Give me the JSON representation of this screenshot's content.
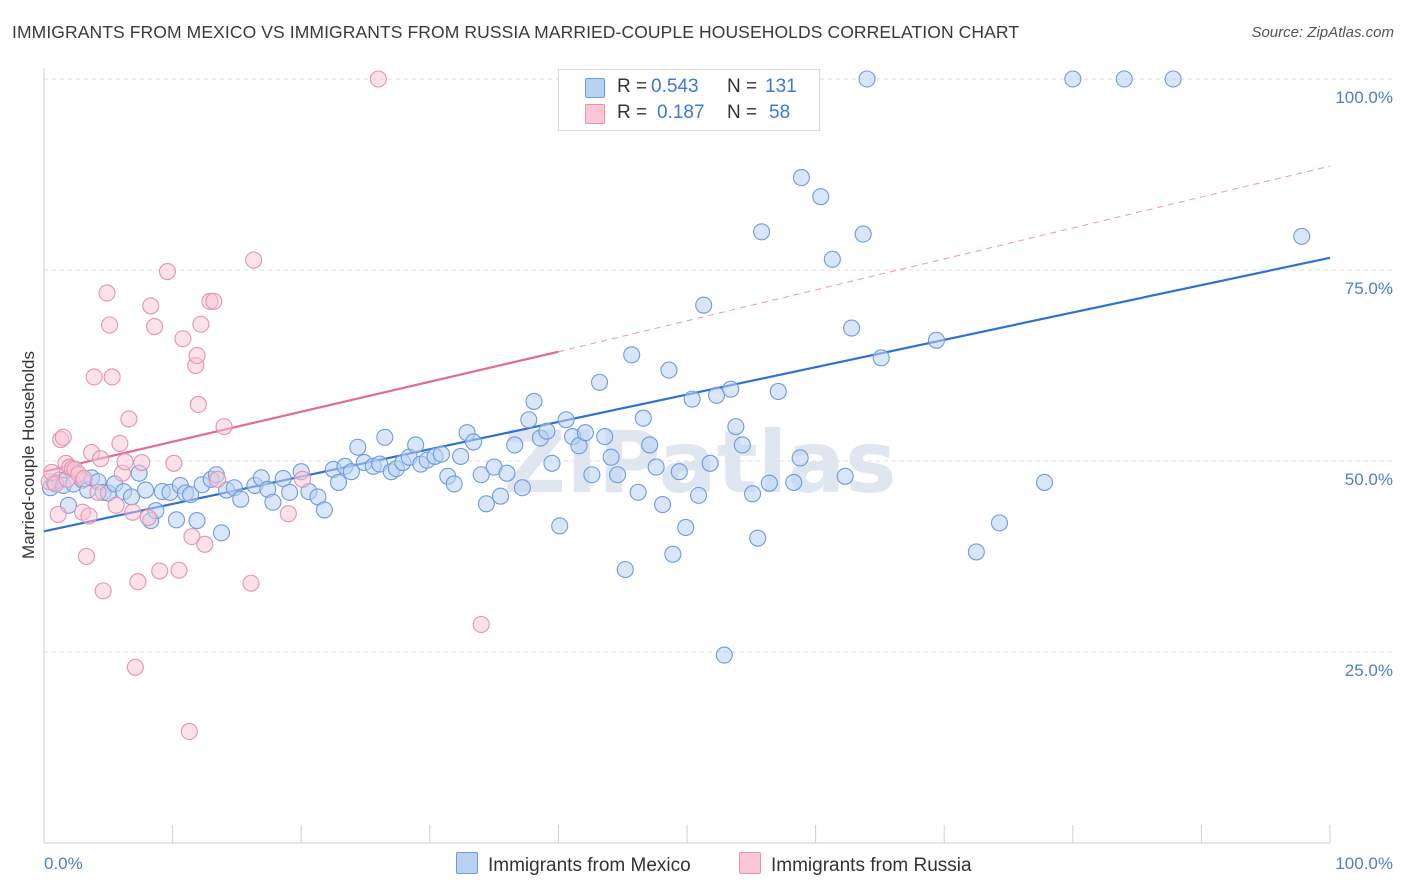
{
  "title": "IMMIGRANTS FROM MEXICO VS IMMIGRANTS FROM RUSSIA MARRIED-COUPLE HOUSEHOLDS CORRELATION CHART",
  "source": "Source: ZipAtlas.com",
  "watermark": "ZIPatlas",
  "legend": {
    "mexico": {
      "r_label": "R =",
      "r_value": "0.543",
      "n_label": "N =",
      "n_value": "131"
    },
    "russia": {
      "r_label": "R =",
      "r_value": "0.187",
      "n_label": "N =",
      "n_value": "58"
    }
  },
  "colors": {
    "mexico_fill": "#b9d1f3",
    "mexico_stroke": "#6c9be0",
    "mexico_line": "#2f72d0",
    "russia_fill": "#f8c6d5",
    "russia_stroke": "#e792ae",
    "russia_line": "#e26b92",
    "grid": "#dcdcdc",
    "axis_text": "#4a7fd0"
  },
  "chart_data": {
    "type": "scatter",
    "title": "IMMIGRANTS FROM MEXICO VS IMMIGRANTS FROM RUSSIA MARRIED-COUPLE HOUSEHOLDS CORRELATION CHART",
    "xlabel": "",
    "ylabel": "Married-couple Households",
    "xlim": [
      0,
      100
    ],
    "ylim": [
      0,
      100
    ],
    "x_tick_labels": [
      "0.0%",
      "100.0%"
    ],
    "y_ticks": [
      25,
      50,
      75,
      100
    ],
    "y_tick_labels": [
      "25.0%",
      "50.0%",
      "75.0%",
      "100.0%"
    ],
    "series": [
      {
        "name": "Immigrants from Mexico",
        "trend": {
          "x0": 0,
          "y0": 40.8,
          "x1": 100,
          "y1": 76.6
        },
        "points": [
          [
            0.5,
            46.5
          ],
          [
            0.8,
            47.2
          ],
          [
            1.2,
            47.5
          ],
          [
            1.5,
            46.8
          ],
          [
            1.9,
            44.2
          ],
          [
            2.3,
            47.0
          ],
          [
            3.0,
            47.5
          ],
          [
            3.4,
            46.2
          ],
          [
            3.7,
            47.8
          ],
          [
            4.2,
            47.3
          ],
          [
            4.6,
            45.9
          ],
          [
            5.0,
            45.8
          ],
          [
            5.5,
            47.0
          ],
          [
            6.2,
            46.0
          ],
          [
            6.8,
            45.3
          ],
          [
            7.4,
            48.4
          ],
          [
            7.9,
            46.2
          ],
          [
            8.3,
            42.2
          ],
          [
            8.7,
            43.5
          ],
          [
            9.2,
            46.0
          ],
          [
            9.8,
            45.9
          ],
          [
            10.3,
            42.3
          ],
          [
            10.6,
            46.8
          ],
          [
            11.0,
            45.8
          ],
          [
            11.4,
            45.6
          ],
          [
            11.9,
            42.2
          ],
          [
            12.3,
            46.9
          ],
          [
            13.0,
            47.6
          ],
          [
            13.4,
            48.2
          ],
          [
            13.8,
            40.6
          ],
          [
            14.2,
            46.2
          ],
          [
            14.8,
            46.5
          ],
          [
            15.3,
            45.0
          ],
          [
            16.4,
            46.8
          ],
          [
            16.9,
            47.8
          ],
          [
            17.4,
            46.3
          ],
          [
            17.8,
            44.6
          ],
          [
            18.6,
            47.7
          ],
          [
            19.1,
            45.9
          ],
          [
            20.0,
            48.6
          ],
          [
            20.6,
            46.0
          ],
          [
            21.3,
            45.3
          ],
          [
            21.8,
            43.6
          ],
          [
            22.5,
            48.9
          ],
          [
            22.9,
            47.2
          ],
          [
            23.4,
            49.3
          ],
          [
            23.9,
            48.6
          ],
          [
            24.4,
            51.8
          ],
          [
            24.9,
            49.8
          ],
          [
            25.6,
            49.3
          ],
          [
            26.1,
            49.6
          ],
          [
            26.5,
            53.1
          ],
          [
            27.0,
            48.6
          ],
          [
            27.4,
            49.0
          ],
          [
            27.9,
            49.8
          ],
          [
            28.4,
            50.5
          ],
          [
            28.9,
            52.1
          ],
          [
            29.3,
            49.6
          ],
          [
            29.8,
            50.1
          ],
          [
            30.4,
            50.6
          ],
          [
            30.9,
            50.9
          ],
          [
            31.4,
            48.0
          ],
          [
            31.9,
            47.0
          ],
          [
            32.4,
            50.6
          ],
          [
            32.9,
            53.7
          ],
          [
            33.4,
            52.5
          ],
          [
            34.0,
            48.2
          ],
          [
            34.4,
            44.4
          ],
          [
            35.0,
            49.2
          ],
          [
            35.5,
            45.4
          ],
          [
            36.0,
            48.4
          ],
          [
            36.6,
            52.1
          ],
          [
            37.2,
            46.5
          ],
          [
            37.7,
            55.4
          ],
          [
            38.1,
            57.8
          ],
          [
            38.6,
            53.0
          ],
          [
            39.1,
            53.9
          ],
          [
            39.5,
            49.7
          ],
          [
            40.1,
            41.5
          ],
          [
            40.6,
            55.4
          ],
          [
            41.1,
            53.2
          ],
          [
            41.6,
            52.0
          ],
          [
            42.1,
            53.7
          ],
          [
            42.6,
            48.2
          ],
          [
            43.2,
            60.3
          ],
          [
            43.6,
            53.2
          ],
          [
            44.1,
            50.5
          ],
          [
            44.6,
            48.2
          ],
          [
            45.2,
            35.8
          ],
          [
            45.7,
            63.9
          ],
          [
            46.2,
            45.9
          ],
          [
            46.6,
            55.6
          ],
          [
            47.1,
            52.1
          ],
          [
            47.6,
            49.2
          ],
          [
            48.1,
            44.3
          ],
          [
            48.6,
            61.9
          ],
          [
            48.9,
            37.8
          ],
          [
            49.4,
            48.6
          ],
          [
            49.9,
            41.3
          ],
          [
            50.4,
            58.1
          ],
          [
            50.9,
            45.5
          ],
          [
            51.3,
            70.4
          ],
          [
            51.8,
            49.7
          ],
          [
            52.3,
            58.6
          ],
          [
            52.9,
            24.6
          ],
          [
            53.4,
            59.4
          ],
          [
            53.8,
            54.5
          ],
          [
            54.3,
            52.1
          ],
          [
            55.1,
            45.7
          ],
          [
            55.5,
            39.9
          ],
          [
            55.8,
            80.0
          ],
          [
            56.4,
            47.1
          ],
          [
            57.1,
            59.1
          ],
          [
            58.3,
            47.2
          ],
          [
            58.8,
            50.4
          ],
          [
            58.9,
            87.1
          ],
          [
            60.4,
            84.6
          ],
          [
            61.3,
            76.4
          ],
          [
            62.3,
            48.0
          ],
          [
            62.8,
            67.4
          ],
          [
            63.7,
            79.7
          ],
          [
            65.1,
            63.5
          ],
          [
            69.4,
            65.8
          ],
          [
            72.5,
            38.1
          ],
          [
            74.3,
            41.9
          ],
          [
            77.8,
            47.2
          ],
          [
            97.8,
            79.4
          ],
          [
            80.0,
            100
          ],
          [
            84.0,
            100
          ],
          [
            87.8,
            100
          ],
          [
            64.0,
            100
          ]
        ]
      },
      {
        "name": "Immigrants from Russia",
        "trend": {
          "x0": 0,
          "y0": 48.6,
          "x1": 40,
          "y1": 64.3,
          "dash_x1": 100,
          "dash_y1": 88.6
        },
        "points": [
          [
            0.4,
            47.3
          ],
          [
            0.6,
            48.5
          ],
          [
            0.9,
            47.0
          ],
          [
            1.1,
            43.0
          ],
          [
            1.3,
            52.8
          ],
          [
            1.5,
            53.1
          ],
          [
            1.7,
            49.7
          ],
          [
            1.8,
            47.6
          ],
          [
            2.0,
            49.2
          ],
          [
            2.2,
            49.0
          ],
          [
            2.4,
            48.9
          ],
          [
            2.7,
            48.3
          ],
          [
            3.0,
            43.3
          ],
          [
            3.1,
            47.7
          ],
          [
            3.3,
            37.5
          ],
          [
            3.5,
            42.8
          ],
          [
            3.7,
            51.1
          ],
          [
            3.9,
            61.0
          ],
          [
            4.2,
            45.9
          ],
          [
            4.4,
            50.3
          ],
          [
            4.6,
            33.0
          ],
          [
            4.9,
            72.0
          ],
          [
            5.1,
            67.8
          ],
          [
            5.3,
            61.0
          ],
          [
            5.6,
            44.2
          ],
          [
            5.9,
            52.3
          ],
          [
            6.1,
            48.4
          ],
          [
            6.3,
            49.9
          ],
          [
            6.6,
            55.5
          ],
          [
            6.9,
            43.3
          ],
          [
            7.1,
            23.0
          ],
          [
            7.3,
            34.2
          ],
          [
            7.6,
            49.8
          ],
          [
            8.1,
            42.6
          ],
          [
            8.3,
            70.3
          ],
          [
            8.6,
            67.6
          ],
          [
            9.0,
            35.6
          ],
          [
            9.6,
            74.8
          ],
          [
            10.1,
            49.7
          ],
          [
            10.5,
            35.7
          ],
          [
            10.8,
            66.0
          ],
          [
            11.3,
            14.6
          ],
          [
            11.5,
            40.1
          ],
          [
            11.8,
            62.5
          ],
          [
            11.9,
            63.8
          ],
          [
            12.0,
            57.4
          ],
          [
            12.2,
            67.9
          ],
          [
            12.5,
            39.1
          ],
          [
            12.9,
            70.9
          ],
          [
            13.2,
            70.9
          ],
          [
            13.5,
            47.6
          ],
          [
            14.0,
            54.5
          ],
          [
            16.1,
            34.0
          ],
          [
            16.3,
            76.3
          ],
          [
            19.0,
            43.1
          ],
          [
            20.1,
            47.6
          ],
          [
            26.0,
            100
          ],
          [
            34.0,
            28.6
          ]
        ]
      }
    ]
  },
  "bottom_legend": {
    "mexico_label": "Immigrants from Mexico",
    "russia_label": "Immigrants from Russia"
  }
}
